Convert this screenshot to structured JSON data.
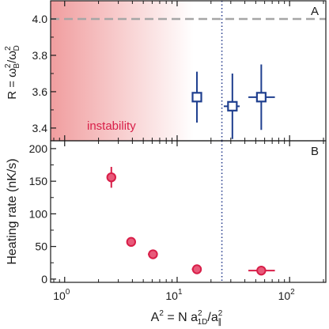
{
  "chart_data": [
    {
      "panel": "A",
      "type": "scatter",
      "ylabel": "R = ω_B²/ω_D²",
      "ylabel_parts": {
        "prefix": "R = ω",
        "sup1": "2",
        "sub1": "B",
        "slash": "/ω",
        "sup2": "2",
        "sub2": "D"
      },
      "xscale": "log",
      "xlim": [
        0.75,
        210
      ],
      "ylim": [
        3.33,
        4.1
      ],
      "yticks": [
        3.4,
        3.6,
        3.8,
        4.0
      ],
      "ytick_labels": [
        "3.4",
        "3.6",
        "3.8",
        "4.0"
      ],
      "reference_line_y": 4.0,
      "vertical_line_x": 25,
      "shaded_region": {
        "x_from": 0.75,
        "x_to": 14,
        "label": "instability",
        "color": "#e8696b"
      },
      "marker": "open square",
      "color": "#1f3f8f",
      "points": [
        {
          "x": 15.0,
          "y": 3.57,
          "yerr": 0.14,
          "xerr_lo": 1.5,
          "xerr_hi": 1.5
        },
        {
          "x": 31.0,
          "y": 3.52,
          "yerr": 0.18,
          "xerr_lo": 5.0,
          "xerr_hi": 5.0
        },
        {
          "x": 56.0,
          "y": 3.57,
          "yerr": 0.18,
          "xerr_lo": 13.0,
          "xerr_hi": 18.0
        }
      ]
    },
    {
      "panel": "B",
      "type": "scatter",
      "ylabel": "Heating rate (nK/s)",
      "xlabel": "A² = N a_1D²/a_∥²",
      "xlabel_parts": {
        "a": "A",
        "sup0": "2",
        "b": " = N a",
        "sup1": "2",
        "sub1": "1D",
        "c": "/a",
        "sup2": "2",
        "sub2": "∥"
      },
      "xscale": "log",
      "xlim": [
        0.75,
        210
      ],
      "ylim": [
        -5,
        212
      ],
      "yticks": [
        0,
        50,
        100,
        150,
        200
      ],
      "ytick_labels": [
        "0",
        "50",
        "100",
        "150",
        "200"
      ],
      "xticks": [
        1,
        10,
        100
      ],
      "xtick_labels": [
        {
          "base": "10",
          "exp": "0"
        },
        {
          "base": "10",
          "exp": "1"
        },
        {
          "base": "10",
          "exp": "2"
        }
      ],
      "vertical_line_x": 25,
      "marker": "filled circle",
      "color": "#d81e48",
      "points": [
        {
          "x": 2.6,
          "y": 156,
          "yerr": 16,
          "xerr_lo": 0.2,
          "xerr_hi": 0.2
        },
        {
          "x": 3.9,
          "y": 57,
          "yerr": 7,
          "xerr_lo": 0.3,
          "xerr_hi": 0.3
        },
        {
          "x": 6.1,
          "y": 38,
          "yerr": 4,
          "xerr_lo": 0.6,
          "xerr_hi": 0.6
        },
        {
          "x": 15.0,
          "y": 15,
          "yerr": 4,
          "xerr_lo": 1.5,
          "xerr_hi": 1.5
        },
        {
          "x": 56.0,
          "y": 13,
          "yerr": 3,
          "xerr_lo": 13.0,
          "xerr_hi": 18.0
        }
      ]
    }
  ]
}
